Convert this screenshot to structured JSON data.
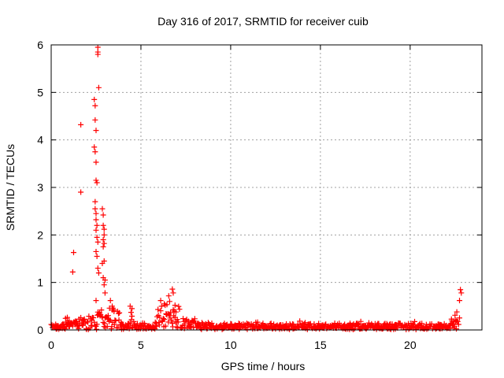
{
  "chart_data": {
    "type": "scatter",
    "title": "Day 316 of 2017, SRMTID for receiver cuib",
    "xlabel": "GPS time / hours",
    "ylabel": "SRMTID / TECUs",
    "xlim": [
      0,
      24
    ],
    "ylim": [
      0,
      6
    ],
    "x_ticks": [
      0,
      5,
      10,
      15,
      20
    ],
    "y_ticks": [
      0,
      1,
      2,
      3,
      4,
      5,
      6
    ],
    "grid": true,
    "marker": "+",
    "series": [
      {
        "name": "SRMTID",
        "color": "#ff0000",
        "baseline_approx": {
          "x_range": [
            0,
            22.8
          ],
          "typical_y": [
            0.0,
            0.3
          ]
        },
        "points": [
          {
            "x": 1.2,
            "y": 1.22
          },
          {
            "x": 1.25,
            "y": 1.63
          },
          {
            "x": 1.65,
            "y": 4.32
          },
          {
            "x": 1.65,
            "y": 2.9
          },
          {
            "x": 2.4,
            "y": 4.85
          },
          {
            "x": 2.45,
            "y": 4.72
          },
          {
            "x": 2.45,
            "y": 4.42
          },
          {
            "x": 2.5,
            "y": 4.2
          },
          {
            "x": 2.4,
            "y": 3.85
          },
          {
            "x": 2.45,
            "y": 3.75
          },
          {
            "x": 2.5,
            "y": 3.53
          },
          {
            "x": 2.5,
            "y": 3.15
          },
          {
            "x": 2.55,
            "y": 3.1
          },
          {
            "x": 2.45,
            "y": 2.7
          },
          {
            "x": 2.45,
            "y": 2.55
          },
          {
            "x": 2.5,
            "y": 2.45
          },
          {
            "x": 2.5,
            "y": 2.32
          },
          {
            "x": 2.55,
            "y": 2.2
          },
          {
            "x": 2.5,
            "y": 2.1
          },
          {
            "x": 2.55,
            "y": 1.95
          },
          {
            "x": 2.6,
            "y": 1.85
          },
          {
            "x": 2.5,
            "y": 1.65
          },
          {
            "x": 2.55,
            "y": 1.55
          },
          {
            "x": 2.6,
            "y": 1.3
          },
          {
            "x": 2.65,
            "y": 1.2
          },
          {
            "x": 2.5,
            "y": 0.62
          },
          {
            "x": 2.6,
            "y": 5.95
          },
          {
            "x": 2.6,
            "y": 5.85
          },
          {
            "x": 2.6,
            "y": 5.8
          },
          {
            "x": 2.65,
            "y": 5.1
          },
          {
            "x": 2.85,
            "y": 2.55
          },
          {
            "x": 2.9,
            "y": 2.42
          },
          {
            "x": 2.9,
            "y": 2.2
          },
          {
            "x": 2.95,
            "y": 2.12
          },
          {
            "x": 2.95,
            "y": 2.0
          },
          {
            "x": 2.9,
            "y": 1.9
          },
          {
            "x": 2.95,
            "y": 1.82
          },
          {
            "x": 2.9,
            "y": 1.75
          },
          {
            "x": 2.95,
            "y": 1.45
          },
          {
            "x": 2.85,
            "y": 1.4
          },
          {
            "x": 2.9,
            "y": 1.1
          },
          {
            "x": 3.0,
            "y": 1.05
          },
          {
            "x": 2.95,
            "y": 0.95
          },
          {
            "x": 3.0,
            "y": 0.78
          },
          {
            "x": 3.3,
            "y": 0.62
          },
          {
            "x": 3.4,
            "y": 0.5
          },
          {
            "x": 3.5,
            "y": 0.42
          },
          {
            "x": 4.4,
            "y": 0.5
          },
          {
            "x": 4.5,
            "y": 0.45
          },
          {
            "x": 6.1,
            "y": 0.62
          },
          {
            "x": 6.3,
            "y": 0.55
          },
          {
            "x": 6.6,
            "y": 0.6
          },
          {
            "x": 6.75,
            "y": 0.86
          },
          {
            "x": 6.8,
            "y": 0.78
          },
          {
            "x": 6.9,
            "y": 0.52
          },
          {
            "x": 22.8,
            "y": 0.85
          },
          {
            "x": 22.85,
            "y": 0.78
          },
          {
            "x": 22.75,
            "y": 0.62
          },
          {
            "x": 22.6,
            "y": 0.38
          }
        ]
      }
    ]
  }
}
